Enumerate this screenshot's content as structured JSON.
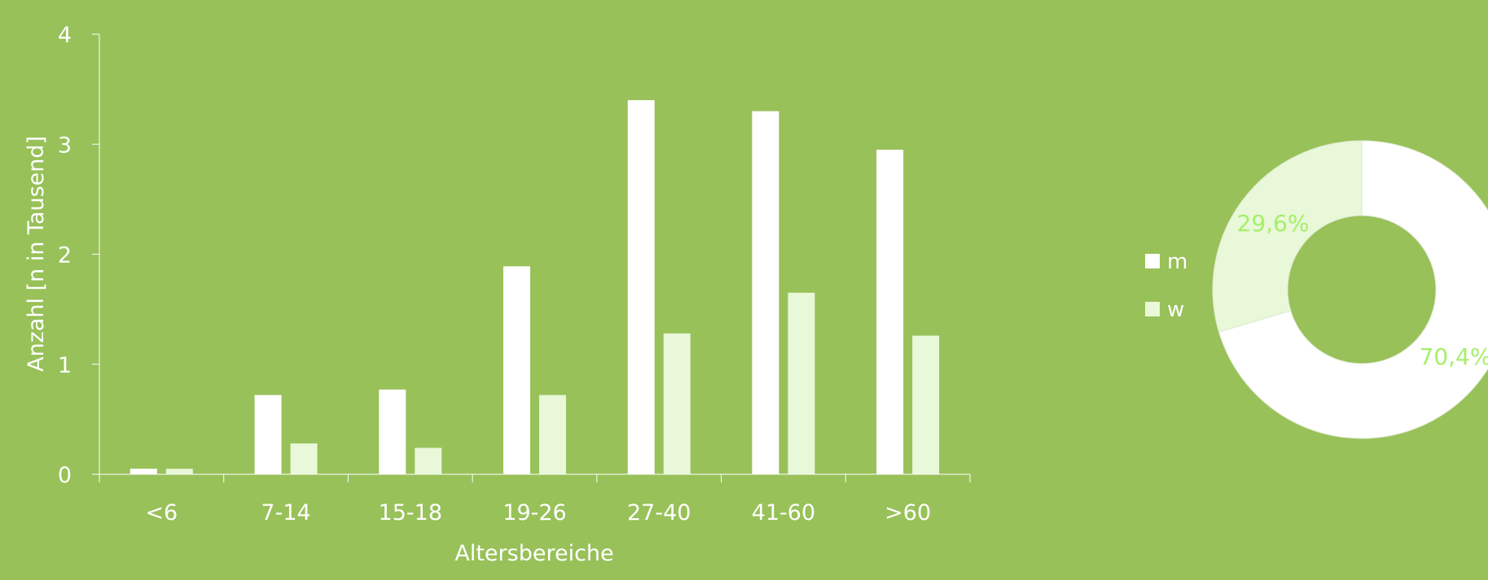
{
  "colors": {
    "background": "#98c159",
    "series_m": "#ffffff",
    "series_w": "#e8f8d8",
    "axis": "#ffffff",
    "text": "#ffffff",
    "donut_label": "#a6ef6a"
  },
  "chart_data": [
    {
      "type": "bar",
      "xlabel": "Altersbereiche",
      "ylabel": "Anzahl [n in Tausend]",
      "ylim": [
        0,
        4
      ],
      "yticks": [
        "0",
        "1",
        "2",
        "3",
        "4"
      ],
      "grid": false,
      "categories": [
        "<6",
        "7-14",
        "15-18",
        "19-26",
        "27-40",
        "41-60",
        ">60"
      ],
      "series": [
        {
          "name": "m",
          "values": [
            0.05,
            0.72,
            0.77,
            1.89,
            3.4,
            3.3,
            2.95
          ]
        },
        {
          "name": "w",
          "values": [
            0.05,
            0.28,
            0.24,
            0.72,
            1.28,
            1.65,
            1.26
          ]
        }
      ]
    },
    {
      "type": "pie",
      "variant": "donut",
      "legend_placement": "left",
      "slices": [
        {
          "name": "m",
          "value": 70.4,
          "label": "70,4%"
        },
        {
          "name": "w",
          "value": 29.6,
          "label": "29,6%"
        }
      ]
    }
  ]
}
